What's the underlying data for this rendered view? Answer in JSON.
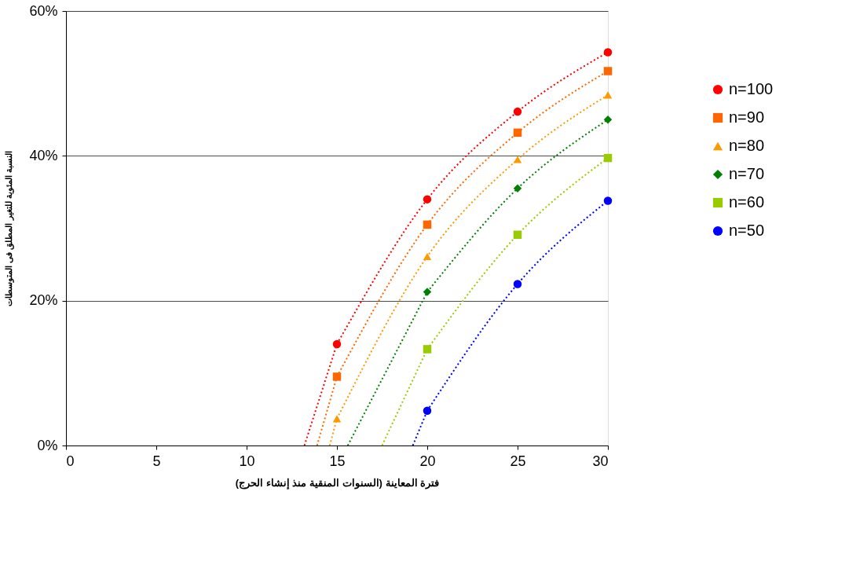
{
  "chart_data": {
    "type": "line",
    "xlabel": "فترة المعاينة (السنوات المنقية منذ إنشاء الحرج)",
    "ylabel": "النسبة المئوية للتغير المطلق فى المتوسطات",
    "xlim": [
      0,
      30
    ],
    "xticks": [
      0,
      5,
      10,
      15,
      20,
      25,
      30
    ],
    "ylim": [
      0,
      60
    ],
    "yticks": [
      {
        "value": 0,
        "label": "0%"
      },
      {
        "value": 20,
        "label": "20%"
      },
      {
        "value": 40,
        "label": "40%"
      },
      {
        "value": 60,
        "label": "60%"
      }
    ],
    "grid": "y",
    "legend": "right",
    "line_style": "dotted",
    "series": [
      {
        "name": "n=100",
        "color": "#ff0000",
        "marker": "circle",
        "x": [
          15,
          20,
          25,
          30
        ],
        "values": [
          14.0,
          34.0,
          46.1,
          54.3
        ]
      },
      {
        "name": "n=90",
        "color": "#ff6600",
        "marker": "square",
        "x": [
          15,
          20,
          25,
          30
        ],
        "values": [
          9.5,
          30.5,
          43.2,
          51.7
        ]
      },
      {
        "name": "n=80",
        "color": "#ff9900",
        "marker": "triangle",
        "x": [
          15,
          20,
          25,
          30
        ],
        "values": [
          3.7,
          26.1,
          39.5,
          48.4
        ]
      },
      {
        "name": "n=70",
        "color": "#008000",
        "marker": "diamond",
        "x": [
          20,
          25,
          30
        ],
        "values": [
          21.2,
          35.5,
          45.0
        ]
      },
      {
        "name": "n=60",
        "color": "#99cc00",
        "marker": "square",
        "x": [
          20,
          25,
          30
        ],
        "values": [
          13.3,
          29.1,
          39.7
        ]
      },
      {
        "name": "n=50",
        "color": "#0000ff",
        "marker": "circle",
        "x": [
          20,
          25,
          30
        ],
        "values": [
          4.8,
          22.3,
          33.8
        ]
      },
      {
        "color": "#ff0000",
        "marker": "none",
        "x": [
          13.2,
          15
        ],
        "values": [
          0,
          14.0
        ]
      },
      {
        "color": "#ff6600",
        "marker": "none",
        "x": [
          13.9,
          15
        ],
        "values": [
          0,
          9.5
        ]
      },
      {
        "color": "#ff9900",
        "marker": "none",
        "x": [
          14.6,
          15
        ],
        "values": [
          0,
          3.7
        ]
      },
      {
        "color": "#008000",
        "marker": "none",
        "x": [
          15.6,
          20
        ],
        "values": [
          0,
          21.2
        ]
      },
      {
        "color": "#99cc00",
        "marker": "none",
        "x": [
          17.5,
          20
        ],
        "values": [
          0,
          13.3
        ]
      },
      {
        "color": "#0000ff",
        "marker": "none",
        "x": [
          19.2,
          20
        ],
        "values": [
          0,
          4.8
        ]
      }
    ]
  }
}
